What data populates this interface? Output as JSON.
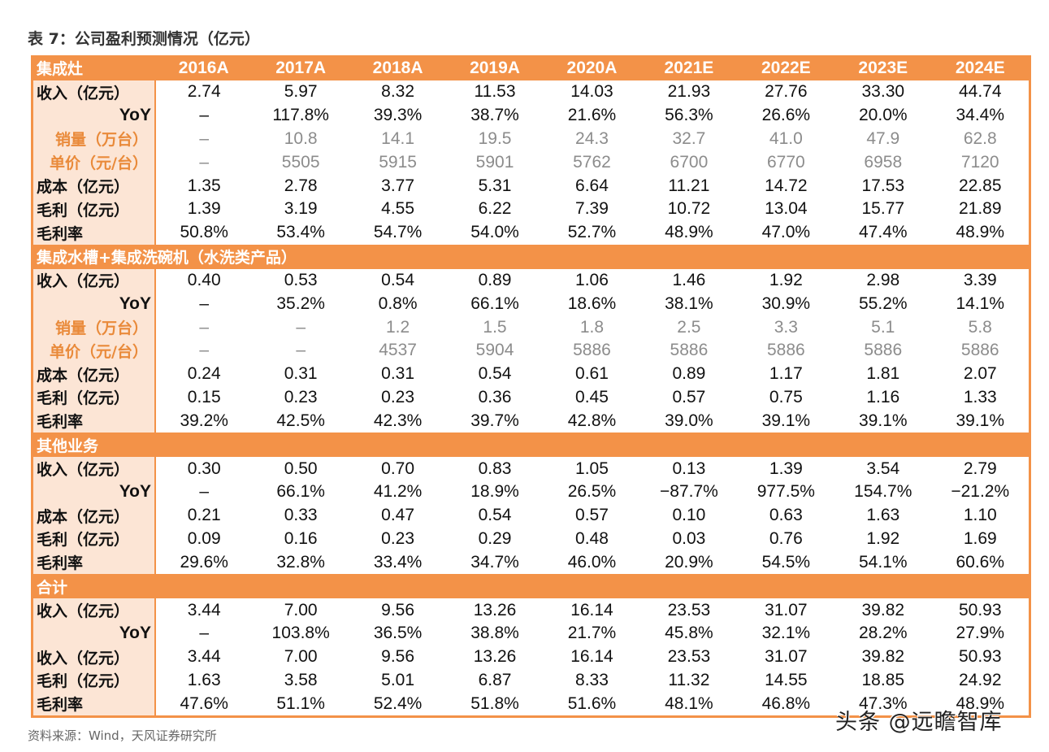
{
  "title": "表 7：公司盈利预测情况（亿元）",
  "table": {
    "corner_label": "集成灶",
    "columns": [
      "2016A",
      "2017A",
      "2018A",
      "2019A",
      "2020A",
      "2021E",
      "2022E",
      "2023E",
      "2024E"
    ],
    "sections": [
      {
        "name": "集成灶",
        "rows": [
          {
            "label": "收入（亿元）",
            "style": "normal",
            "values": [
              "2.74",
              "5.97",
              "8.32",
              "11.53",
              "14.03",
              "21.93",
              "27.76",
              "33.30",
              "44.74"
            ]
          },
          {
            "label": "YoY",
            "style": "yoy",
            "values": [
              "–",
              "117.8%",
              "39.3%",
              "38.7%",
              "21.6%",
              "56.3%",
              "26.6%",
              "20.0%",
              "34.4%"
            ]
          },
          {
            "label": "销量（万台）",
            "style": "grey",
            "values": [
              "–",
              "10.8",
              "14.1",
              "19.5",
              "24.3",
              "32.7",
              "41.0",
              "47.9",
              "62.8"
            ]
          },
          {
            "label": "单价（元/台）",
            "style": "grey",
            "values": [
              "–",
              "5505",
              "5915",
              "5901",
              "5762",
              "6700",
              "6770",
              "6958",
              "7120"
            ]
          },
          {
            "label": "成本（亿元）",
            "style": "normal",
            "values": [
              "1.35",
              "2.78",
              "3.77",
              "5.31",
              "6.64",
              "11.21",
              "14.72",
              "17.53",
              "22.85"
            ]
          },
          {
            "label": "毛利（亿元）",
            "style": "normal",
            "values": [
              "1.39",
              "3.19",
              "4.55",
              "6.22",
              "7.39",
              "10.72",
              "13.04",
              "15.77",
              "21.89"
            ]
          },
          {
            "label": "毛利率",
            "style": "normal",
            "values": [
              "50.8%",
              "53.4%",
              "54.7%",
              "54.0%",
              "52.7%",
              "48.9%",
              "47.0%",
              "47.4%",
              "48.9%"
            ]
          }
        ]
      },
      {
        "name": "集成水槽+集成洗碗机（水洗类产品）",
        "rows": [
          {
            "label": "收入（亿元）",
            "style": "normal",
            "values": [
              "0.40",
              "0.53",
              "0.54",
              "0.89",
              "1.06",
              "1.46",
              "1.92",
              "2.98",
              "3.39"
            ]
          },
          {
            "label": "YoY",
            "style": "yoy",
            "values": [
              "–",
              "35.2%",
              "0.8%",
              "66.1%",
              "18.6%",
              "38.1%",
              "30.9%",
              "55.2%",
              "14.1%"
            ]
          },
          {
            "label": "销量（万台）",
            "style": "grey",
            "values": [
              "–",
              "–",
              "1.2",
              "1.5",
              "1.8",
              "2.5",
              "3.3",
              "5.1",
              "5.8"
            ]
          },
          {
            "label": "单价（元/台）",
            "style": "grey",
            "values": [
              "–",
              "–",
              "4537",
              "5904",
              "5886",
              "5886",
              "5886",
              "5886",
              "5886"
            ]
          },
          {
            "label": "成本（亿元）",
            "style": "normal",
            "values": [
              "0.24",
              "0.31",
              "0.31",
              "0.54",
              "0.61",
              "0.89",
              "1.17",
              "1.81",
              "2.07"
            ]
          },
          {
            "label": "毛利（亿元）",
            "style": "normal",
            "values": [
              "0.15",
              "0.23",
              "0.23",
              "0.36",
              "0.45",
              "0.57",
              "0.75",
              "1.16",
              "1.33"
            ]
          },
          {
            "label": "毛利率",
            "style": "normal",
            "values": [
              "39.2%",
              "42.5%",
              "42.3%",
              "39.7%",
              "42.8%",
              "39.0%",
              "39.1%",
              "39.1%",
              "39.1%"
            ]
          }
        ]
      },
      {
        "name": "其他业务",
        "rows": [
          {
            "label": "收入（亿元）",
            "style": "normal",
            "values": [
              "0.30",
              "0.50",
              "0.70",
              "0.83",
              "1.05",
              "0.13",
              "1.39",
              "3.54",
              "2.79"
            ]
          },
          {
            "label": "YoY",
            "style": "yoy",
            "values": [
              "–",
              "66.1%",
              "41.2%",
              "18.9%",
              "26.5%",
              "−87.7%",
              "977.5%",
              "154.7%",
              "−21.2%"
            ]
          },
          {
            "label": "成本（亿元）",
            "style": "normal",
            "values": [
              "0.21",
              "0.33",
              "0.47",
              "0.54",
              "0.57",
              "0.10",
              "0.63",
              "1.63",
              "1.10"
            ]
          },
          {
            "label": "毛利（亿元）",
            "style": "normal",
            "values": [
              "0.09",
              "0.16",
              "0.23",
              "0.29",
              "0.48",
              "0.03",
              "0.76",
              "1.92",
              "1.69"
            ]
          },
          {
            "label": "毛利率",
            "style": "normal",
            "values": [
              "29.6%",
              "32.8%",
              "33.4%",
              "34.7%",
              "46.0%",
              "20.9%",
              "54.5%",
              "54.1%",
              "60.6%"
            ]
          }
        ]
      },
      {
        "name": "合计",
        "rows": [
          {
            "label": "收入（亿元）",
            "style": "normal",
            "values": [
              "3.44",
              "7.00",
              "9.56",
              "13.26",
              "16.14",
              "23.53",
              "31.07",
              "39.82",
              "50.93"
            ]
          },
          {
            "label": "YoY",
            "style": "yoy",
            "values": [
              "–",
              "103.8%",
              "36.5%",
              "38.8%",
              "21.7%",
              "45.8%",
              "32.1%",
              "28.2%",
              "27.9%"
            ]
          },
          {
            "label": "收入（亿元）",
            "style": "normal",
            "values": [
              "3.44",
              "7.00",
              "9.56",
              "13.26",
              "16.14",
              "23.53",
              "31.07",
              "39.82",
              "50.93"
            ]
          },
          {
            "label": "毛利（亿元）",
            "style": "normal",
            "values": [
              "1.63",
              "3.58",
              "5.01",
              "6.87",
              "8.33",
              "11.32",
              "14.55",
              "18.85",
              "24.92"
            ]
          },
          {
            "label": "毛利率",
            "style": "normal",
            "values": [
              "47.6%",
              "51.1%",
              "52.4%",
              "51.8%",
              "51.6%",
              "48.1%",
              "46.8%",
              "47.3%",
              "48.9%"
            ]
          }
        ]
      }
    ]
  },
  "source": "资料来源：Wind，天风证券研究所",
  "watermark": "头条 @远瞻智库",
  "colors": {
    "header_orange": "#F39248",
    "label_bg": "#FCE5D5",
    "label_orange_text": "#E98A3A",
    "grey_value": "#8c8c8c"
  }
}
